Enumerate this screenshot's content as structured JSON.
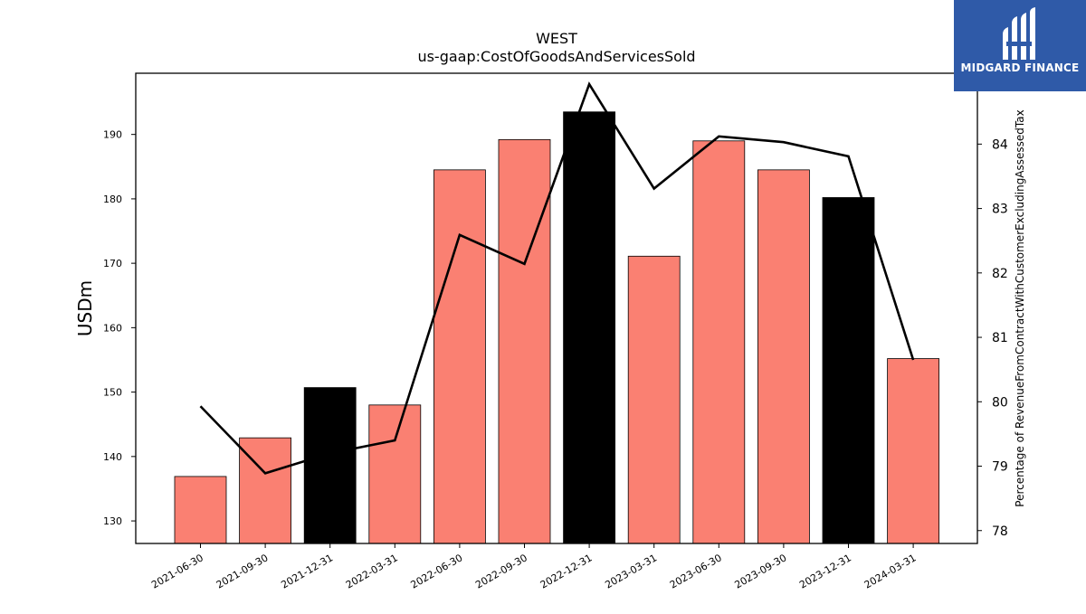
{
  "chart_data": {
    "type": "bar",
    "title": "WEST",
    "subtitle": "us-gaap:CostOfGoodsAndServicesSold",
    "ylabel": "USDm",
    "y2label": "Percentage of RevenueFromContractWithCustomerExcludingAssessedTax",
    "ylim": [
      126.5,
      199.5
    ],
    "y2lim": [
      77.8,
      85.1
    ],
    "yticks": [
      130,
      140,
      150,
      160,
      170,
      180,
      190
    ],
    "y2ticks": [
      78,
      79,
      80,
      81,
      82,
      83,
      84
    ],
    "categories": [
      "2021-06-30",
      "2021-09-30",
      "2021-12-31",
      "2022-03-31",
      "2022-06-30",
      "2022-09-30",
      "2022-12-31",
      "2023-03-31",
      "2023-06-30",
      "2023-09-30",
      "2023-12-31",
      "2024-03-31"
    ],
    "series": [
      {
        "kind": "bar",
        "axis": "left",
        "values": [
          136.9,
          142.9,
          150.7,
          148.0,
          184.5,
          189.2,
          193.5,
          171.1,
          189.0,
          184.5,
          180.2,
          155.2
        ],
        "colors": [
          "#fa8072",
          "#fa8072",
          "#000000",
          "#fa8072",
          "#fa8072",
          "#fa8072",
          "#000000",
          "#fa8072",
          "#fa8072",
          "#fa8072",
          "#000000",
          "#fa8072"
        ]
      },
      {
        "kind": "line",
        "axis": "right",
        "color": "#000000",
        "values": [
          79.93,
          78.89,
          79.2,
          79.4,
          82.59,
          82.14,
          84.93,
          83.31,
          84.12,
          84.03,
          83.81,
          80.65
        ]
      }
    ],
    "grid": false,
    "legend": "none"
  },
  "logo": {
    "text": "MIDGARD FINANCE",
    "background": "#2f5aa8"
  }
}
